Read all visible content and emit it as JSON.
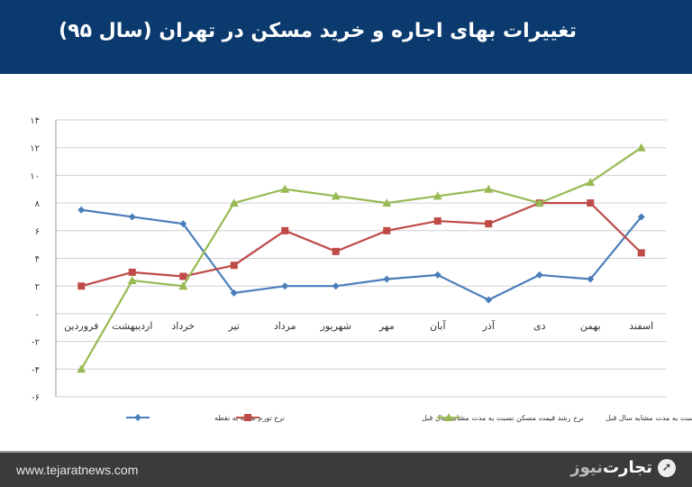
{
  "header": {
    "title": "تغییرات بهای اجاره و خرید مسکن در تهران (سال ۹۵)"
  },
  "footer": {
    "website": "www.tejaratnews.com",
    "logo_text_a": "تجارت",
    "logo_text_b": "نیوز"
  },
  "chart_data": {
    "type": "line",
    "title": "تغییرات بهای اجاره و خرید مسکن در تهران (سال ۹۵)",
    "categories": [
      "فروردین",
      "اردیبهشت",
      "خرداد",
      "تیر",
      "مرداد",
      "شهریور",
      "مهر",
      "آبان",
      "آذر",
      "دی",
      "بهمن",
      "اسفند"
    ],
    "ylim": [
      -6,
      14
    ],
    "yticks": [
      -6,
      -4,
      -2,
      0,
      2,
      4,
      6,
      8,
      10,
      12,
      14
    ],
    "ytick_labels": [
      "-۶",
      "-۴",
      "-۲",
      "۰",
      "۲",
      "۴",
      "۶",
      "۸",
      "۱۰",
      "۱۲",
      "۱۴"
    ],
    "grid": true,
    "legend_position": "bottom",
    "series": [
      {
        "name": "نرخ تورم نقطه به نقطه",
        "color": "#4a7ebb",
        "marker": "diamond",
        "values": [
          7.5,
          7,
          6.5,
          1.5,
          2,
          2,
          2.5,
          2.8,
          1,
          2.8,
          2.5,
          7
        ]
      },
      {
        "name": "نرخ رشد قیمت مسکن نسبت به مدت مشابه سال قبل",
        "color": "#be4b48",
        "marker": "square",
        "values": [
          2,
          3,
          2.7,
          3.5,
          6,
          4.5,
          6,
          6.7,
          6.5,
          8,
          8,
          4.4
        ]
      },
      {
        "name": "نرخ رشد اجاره‌بها نسبت به مدت مشابه سال قبل",
        "color": "#98b954",
        "marker": "triangle",
        "values": [
          -4,
          2.4,
          2,
          8,
          9,
          8.5,
          8,
          8.5,
          9,
          8,
          9.5,
          12
        ]
      }
    ]
  }
}
